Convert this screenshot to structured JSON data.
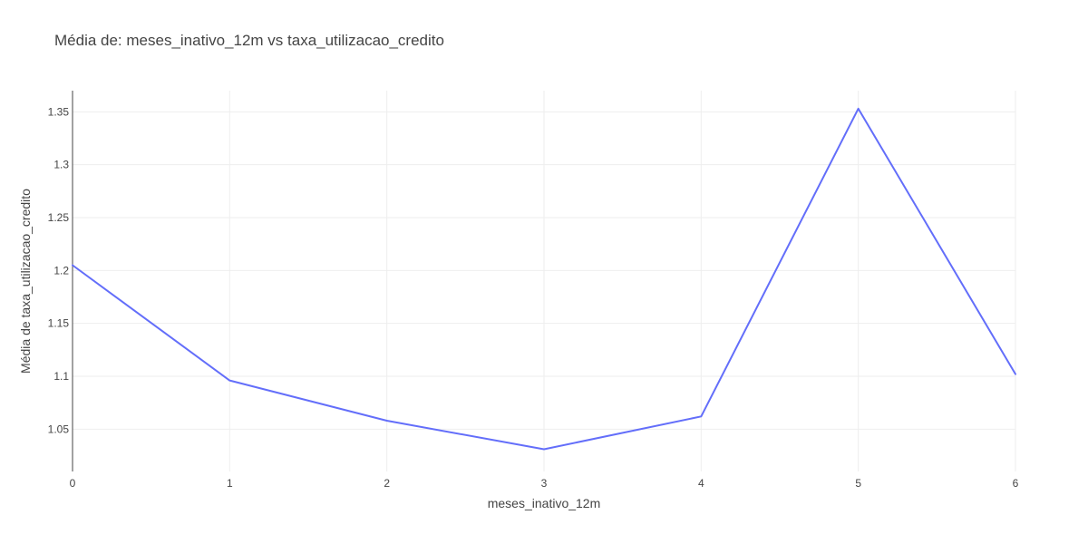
{
  "chart_data": {
    "type": "line",
    "title": "Média de: meses_inativo_12m vs taxa_utilizacao_credito",
    "xlabel": "meses_inativo_12m",
    "ylabel": "Média de taxa_utilizacao_credito",
    "x": [
      0,
      1,
      2,
      3,
      4,
      5,
      6
    ],
    "y": [
      1.205,
      1.096,
      1.058,
      1.031,
      1.062,
      1.353,
      1.102
    ],
    "xlim": [
      0,
      6
    ],
    "ylim": [
      1.01,
      1.37
    ],
    "x_ticks": [
      "0",
      "1",
      "2",
      "3",
      "4",
      "5",
      "6"
    ],
    "y_ticks": [
      "1.05",
      "1.1",
      "1.15",
      "1.2",
      "1.25",
      "1.3",
      "1.35"
    ],
    "grid": true,
    "line_color": "#636efa"
  }
}
